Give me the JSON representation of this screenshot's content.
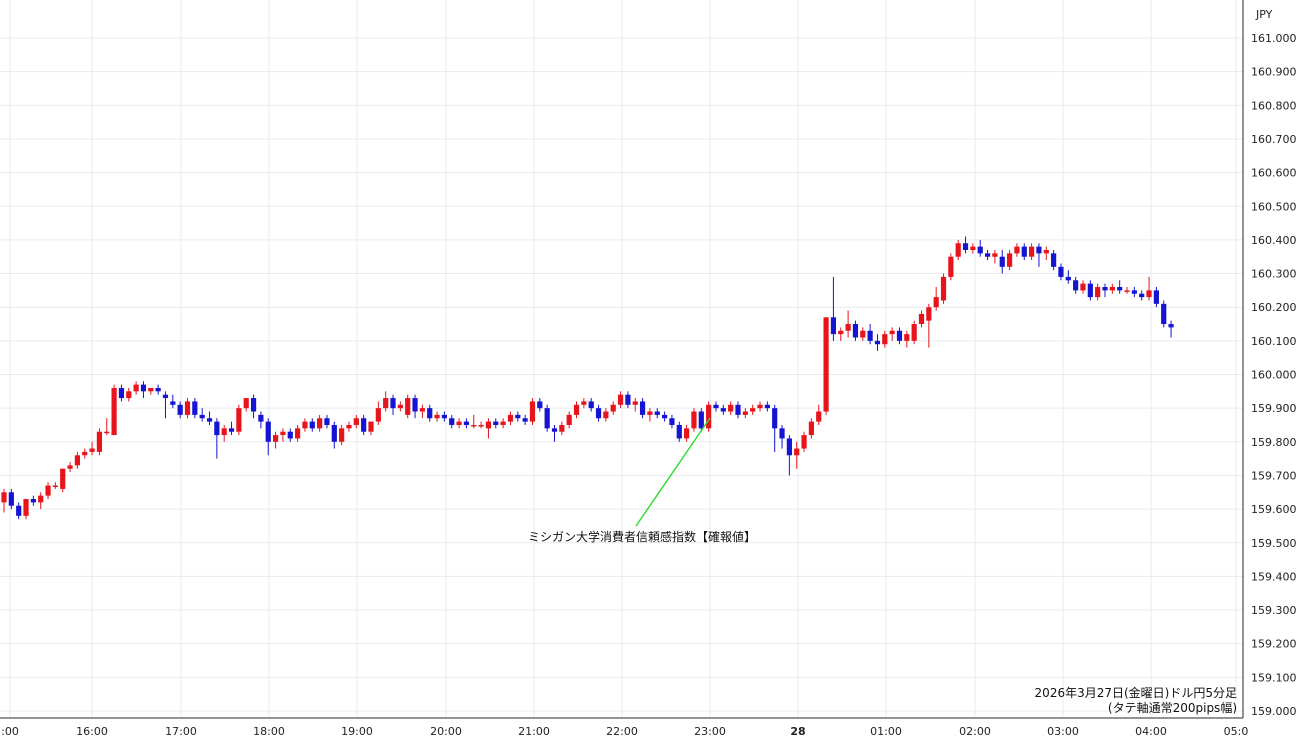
{
  "chart_data": {
    "type": "candlestick",
    "currency_label": "JPY",
    "y_ticks": [
      "161.000",
      "160.900",
      "160.800",
      "160.700",
      "160.600",
      "160.500",
      "160.400",
      "160.300",
      "160.200",
      "160.100",
      "160.000",
      "159.900",
      "159.800",
      "159.700",
      "159.600",
      "159.500",
      "159.400",
      "159.300",
      "159.200",
      "159.100",
      "159.000"
    ],
    "ylim": [
      159.0,
      161.0
    ],
    "x_ticks": [
      {
        "label": ":00",
        "bold": false
      },
      {
        "label": "16:00",
        "bold": false
      },
      {
        "label": "17:00",
        "bold": false
      },
      {
        "label": "18:00",
        "bold": false
      },
      {
        "label": "19:00",
        "bold": false
      },
      {
        "label": "20:00",
        "bold": false
      },
      {
        "label": "21:00",
        "bold": false
      },
      {
        "label": "22:00",
        "bold": false
      },
      {
        "label": "23:00",
        "bold": false
      },
      {
        "label": "28",
        "bold": true
      },
      {
        "label": "01:00",
        "bold": false
      },
      {
        "label": "02:00",
        "bold": false
      },
      {
        "label": "03:00",
        "bold": false
      },
      {
        "label": "04:00",
        "bold": false
      },
      {
        "label": "05:0",
        "bold": false
      }
    ],
    "up_color": "#e8141c",
    "down_color": "#1414d2",
    "annotation": {
      "text": "ミシガン大学消費者信頼感指数【確報値】",
      "line_color": "#33dd33"
    },
    "caption": [
      "2026年3月27日(金曜日)ドル円5分足",
      "(タテ軸通常200pips幅)"
    ],
    "candles": [
      {
        "o": 159.62,
        "h": 159.66,
        "l": 159.59,
        "c": 159.65
      },
      {
        "o": 159.65,
        "h": 159.66,
        "l": 159.6,
        "c": 159.61
      },
      {
        "o": 159.61,
        "h": 159.62,
        "l": 159.57,
        "c": 159.58
      },
      {
        "o": 159.58,
        "h": 159.63,
        "l": 159.57,
        "c": 159.63
      },
      {
        "o": 159.63,
        "h": 159.64,
        "l": 159.61,
        "c": 159.62
      },
      {
        "o": 159.62,
        "h": 159.65,
        "l": 159.6,
        "c": 159.64
      },
      {
        "o": 159.64,
        "h": 159.68,
        "l": 159.63,
        "c": 159.67
      },
      {
        "o": 159.67,
        "h": 159.68,
        "l": 159.66,
        "c": 159.67
      },
      {
        "o": 159.66,
        "h": 159.72,
        "l": 159.65,
        "c": 159.72
      },
      {
        "o": 159.72,
        "h": 159.74,
        "l": 159.71,
        "c": 159.73
      },
      {
        "o": 159.73,
        "h": 159.77,
        "l": 159.72,
        "c": 159.76
      },
      {
        "o": 159.76,
        "h": 159.78,
        "l": 159.75,
        "c": 159.77
      },
      {
        "o": 159.77,
        "h": 159.8,
        "l": 159.76,
        "c": 159.78
      },
      {
        "o": 159.77,
        "h": 159.84,
        "l": 159.76,
        "c": 159.83
      },
      {
        "o": 159.83,
        "h": 159.87,
        "l": 159.82,
        "c": 159.83
      },
      {
        "o": 159.82,
        "h": 159.97,
        "l": 159.82,
        "c": 159.96
      },
      {
        "o": 159.96,
        "h": 159.97,
        "l": 159.92,
        "c": 159.93
      },
      {
        "o": 159.93,
        "h": 159.96,
        "l": 159.92,
        "c": 159.95
      },
      {
        "o": 159.95,
        "h": 159.98,
        "l": 159.94,
        "c": 159.97
      },
      {
        "o": 159.97,
        "h": 159.98,
        "l": 159.93,
        "c": 159.95
      },
      {
        "o": 159.95,
        "h": 159.96,
        "l": 159.94,
        "c": 159.96
      },
      {
        "o": 159.96,
        "h": 159.97,
        "l": 159.94,
        "c": 159.95
      },
      {
        "o": 159.94,
        "h": 159.95,
        "l": 159.87,
        "c": 159.93
      },
      {
        "o": 159.92,
        "h": 159.94,
        "l": 159.9,
        "c": 159.91
      },
      {
        "o": 159.91,
        "h": 159.92,
        "l": 159.87,
        "c": 159.88
      },
      {
        "o": 159.88,
        "h": 159.93,
        "l": 159.87,
        "c": 159.92
      },
      {
        "o": 159.92,
        "h": 159.93,
        "l": 159.87,
        "c": 159.88
      },
      {
        "o": 159.88,
        "h": 159.9,
        "l": 159.86,
        "c": 159.87
      },
      {
        "o": 159.87,
        "h": 159.89,
        "l": 159.85,
        "c": 159.86
      },
      {
        "o": 159.86,
        "h": 159.87,
        "l": 159.75,
        "c": 159.82
      },
      {
        "o": 159.82,
        "h": 159.85,
        "l": 159.8,
        "c": 159.84
      },
      {
        "o": 159.84,
        "h": 159.86,
        "l": 159.82,
        "c": 159.83
      },
      {
        "o": 159.83,
        "h": 159.91,
        "l": 159.82,
        "c": 159.9
      },
      {
        "o": 159.9,
        "h": 159.93,
        "l": 159.89,
        "c": 159.93
      },
      {
        "o": 159.93,
        "h": 159.94,
        "l": 159.87,
        "c": 159.89
      },
      {
        "o": 159.88,
        "h": 159.89,
        "l": 159.84,
        "c": 159.86
      },
      {
        "o": 159.86,
        "h": 159.87,
        "l": 159.76,
        "c": 159.8
      },
      {
        "o": 159.8,
        "h": 159.83,
        "l": 159.78,
        "c": 159.82
      },
      {
        "o": 159.82,
        "h": 159.84,
        "l": 159.8,
        "c": 159.83
      },
      {
        "o": 159.83,
        "h": 159.84,
        "l": 159.8,
        "c": 159.81
      },
      {
        "o": 159.81,
        "h": 159.85,
        "l": 159.8,
        "c": 159.84
      },
      {
        "o": 159.84,
        "h": 159.87,
        "l": 159.83,
        "c": 159.86
      },
      {
        "o": 159.86,
        "h": 159.87,
        "l": 159.83,
        "c": 159.84
      },
      {
        "o": 159.84,
        "h": 159.88,
        "l": 159.83,
        "c": 159.87
      },
      {
        "o": 159.87,
        "h": 159.88,
        "l": 159.84,
        "c": 159.85
      },
      {
        "o": 159.85,
        "h": 159.86,
        "l": 159.78,
        "c": 159.8
      },
      {
        "o": 159.8,
        "h": 159.85,
        "l": 159.79,
        "c": 159.84
      },
      {
        "o": 159.84,
        "h": 159.86,
        "l": 159.83,
        "c": 159.85
      },
      {
        "o": 159.85,
        "h": 159.88,
        "l": 159.84,
        "c": 159.87
      },
      {
        "o": 159.87,
        "h": 159.88,
        "l": 159.82,
        "c": 159.83
      },
      {
        "o": 159.83,
        "h": 159.86,
        "l": 159.82,
        "c": 159.86
      },
      {
        "o": 159.86,
        "h": 159.92,
        "l": 159.85,
        "c": 159.9
      },
      {
        "o": 159.9,
        "h": 159.95,
        "l": 159.89,
        "c": 159.93
      },
      {
        "o": 159.93,
        "h": 159.94,
        "l": 159.88,
        "c": 159.9
      },
      {
        "o": 159.9,
        "h": 159.92,
        "l": 159.89,
        "c": 159.91
      },
      {
        "o": 159.88,
        "h": 159.94,
        "l": 159.87,
        "c": 159.93
      },
      {
        "o": 159.93,
        "h": 159.94,
        "l": 159.87,
        "c": 159.89
      },
      {
        "o": 159.89,
        "h": 159.91,
        "l": 159.87,
        "c": 159.9
      },
      {
        "o": 159.9,
        "h": 159.91,
        "l": 159.86,
        "c": 159.87
      },
      {
        "o": 159.87,
        "h": 159.89,
        "l": 159.86,
        "c": 159.88
      },
      {
        "o": 159.88,
        "h": 159.89,
        "l": 159.86,
        "c": 159.87
      },
      {
        "o": 159.87,
        "h": 159.88,
        "l": 159.84,
        "c": 159.85
      },
      {
        "o": 159.85,
        "h": 159.87,
        "l": 159.84,
        "c": 159.86
      },
      {
        "o": 159.86,
        "h": 159.87,
        "l": 159.84,
        "c": 159.85
      },
      {
        "o": 159.85,
        "h": 159.88,
        "l": 159.84,
        "c": 159.85
      },
      {
        "o": 159.85,
        "h": 159.86,
        "l": 159.84,
        "c": 159.85
      },
      {
        "o": 159.84,
        "h": 159.87,
        "l": 159.81,
        "c": 159.86
      },
      {
        "o": 159.86,
        "h": 159.87,
        "l": 159.84,
        "c": 159.85
      },
      {
        "o": 159.85,
        "h": 159.87,
        "l": 159.84,
        "c": 159.86
      },
      {
        "o": 159.86,
        "h": 159.89,
        "l": 159.85,
        "c": 159.88
      },
      {
        "o": 159.88,
        "h": 159.89,
        "l": 159.86,
        "c": 159.87
      },
      {
        "o": 159.87,
        "h": 159.88,
        "l": 159.85,
        "c": 159.86
      },
      {
        "o": 159.86,
        "h": 159.93,
        "l": 159.85,
        "c": 159.92
      },
      {
        "o": 159.92,
        "h": 159.93,
        "l": 159.89,
        "c": 159.9
      },
      {
        "o": 159.9,
        "h": 159.91,
        "l": 159.83,
        "c": 159.84
      },
      {
        "o": 159.84,
        "h": 159.85,
        "l": 159.8,
        "c": 159.83
      },
      {
        "o": 159.83,
        "h": 159.86,
        "l": 159.82,
        "c": 159.85
      },
      {
        "o": 159.85,
        "h": 159.89,
        "l": 159.84,
        "c": 159.88
      },
      {
        "o": 159.88,
        "h": 159.92,
        "l": 159.87,
        "c": 159.91
      },
      {
        "o": 159.91,
        "h": 159.93,
        "l": 159.9,
        "c": 159.92
      },
      {
        "o": 159.92,
        "h": 159.93,
        "l": 159.89,
        "c": 159.9
      },
      {
        "o": 159.9,
        "h": 159.91,
        "l": 159.86,
        "c": 159.87
      },
      {
        "o": 159.87,
        "h": 159.9,
        "l": 159.86,
        "c": 159.89
      },
      {
        "o": 159.89,
        "h": 159.92,
        "l": 159.88,
        "c": 159.91
      },
      {
        "o": 159.91,
        "h": 159.95,
        "l": 159.9,
        "c": 159.94
      },
      {
        "o": 159.94,
        "h": 159.95,
        "l": 159.9,
        "c": 159.91
      },
      {
        "o": 159.91,
        "h": 159.93,
        "l": 159.89,
        "c": 159.92
      },
      {
        "o": 159.92,
        "h": 159.93,
        "l": 159.87,
        "c": 159.88
      },
      {
        "o": 159.88,
        "h": 159.9,
        "l": 159.86,
        "c": 159.89
      },
      {
        "o": 159.89,
        "h": 159.9,
        "l": 159.87,
        "c": 159.88
      },
      {
        "o": 159.88,
        "h": 159.89,
        "l": 159.86,
        "c": 159.87
      },
      {
        "o": 159.87,
        "h": 159.88,
        "l": 159.84,
        "c": 159.85
      },
      {
        "o": 159.85,
        "h": 159.86,
        "l": 159.8,
        "c": 159.81
      },
      {
        "o": 159.81,
        "h": 159.85,
        "l": 159.8,
        "c": 159.84
      },
      {
        "o": 159.84,
        "h": 159.9,
        "l": 159.83,
        "c": 159.89
      },
      {
        "o": 159.89,
        "h": 159.9,
        "l": 159.83,
        "c": 159.84
      },
      {
        "o": 159.84,
        "h": 159.92,
        "l": 159.83,
        "c": 159.91
      },
      {
        "o": 159.91,
        "h": 159.92,
        "l": 159.89,
        "c": 159.9
      },
      {
        "o": 159.9,
        "h": 159.91,
        "l": 159.88,
        "c": 159.89
      },
      {
        "o": 159.89,
        "h": 159.92,
        "l": 159.88,
        "c": 159.91
      },
      {
        "o": 159.91,
        "h": 159.92,
        "l": 159.87,
        "c": 159.88
      },
      {
        "o": 159.88,
        "h": 159.9,
        "l": 159.87,
        "c": 159.89
      },
      {
        "o": 159.89,
        "h": 159.91,
        "l": 159.88,
        "c": 159.9
      },
      {
        "o": 159.9,
        "h": 159.92,
        "l": 159.89,
        "c": 159.91
      },
      {
        "o": 159.91,
        "h": 159.92,
        "l": 159.89,
        "c": 159.9
      },
      {
        "o": 159.9,
        "h": 159.91,
        "l": 159.77,
        "c": 159.84
      },
      {
        "o": 159.84,
        "h": 159.85,
        "l": 159.78,
        "c": 159.81
      },
      {
        "o": 159.81,
        "h": 159.82,
        "l": 159.7,
        "c": 159.76
      },
      {
        "o": 159.76,
        "h": 159.8,
        "l": 159.72,
        "c": 159.78
      },
      {
        "o": 159.78,
        "h": 159.83,
        "l": 159.77,
        "c": 159.82
      },
      {
        "o": 159.82,
        "h": 159.87,
        "l": 159.81,
        "c": 159.86
      },
      {
        "o": 159.86,
        "h": 159.91,
        "l": 159.85,
        "c": 159.89
      },
      {
        "o": 159.89,
        "h": 160.17,
        "l": 159.88,
        "c": 160.17
      },
      {
        "o": 160.17,
        "h": 160.29,
        "l": 160.1,
        "c": 160.12
      },
      {
        "o": 160.12,
        "h": 160.14,
        "l": 160.1,
        "c": 160.13
      },
      {
        "o": 160.13,
        "h": 160.19,
        "l": 160.11,
        "c": 160.15
      },
      {
        "o": 160.15,
        "h": 160.16,
        "l": 160.1,
        "c": 160.11
      },
      {
        "o": 160.11,
        "h": 160.14,
        "l": 160.1,
        "c": 160.13
      },
      {
        "o": 160.13,
        "h": 160.15,
        "l": 160.09,
        "c": 160.1
      },
      {
        "o": 160.1,
        "h": 160.12,
        "l": 160.07,
        "c": 160.09
      },
      {
        "o": 160.09,
        "h": 160.13,
        "l": 160.08,
        "c": 160.12
      },
      {
        "o": 160.12,
        "h": 160.14,
        "l": 160.1,
        "c": 160.13
      },
      {
        "o": 160.13,
        "h": 160.14,
        "l": 160.09,
        "c": 160.1
      },
      {
        "o": 160.1,
        "h": 160.13,
        "l": 160.08,
        "c": 160.12
      },
      {
        "o": 160.1,
        "h": 160.16,
        "l": 160.09,
        "c": 160.15
      },
      {
        "o": 160.15,
        "h": 160.19,
        "l": 160.14,
        "c": 160.18
      },
      {
        "o": 160.16,
        "h": 160.21,
        "l": 160.08,
        "c": 160.2
      },
      {
        "o": 160.2,
        "h": 160.26,
        "l": 160.19,
        "c": 160.23
      },
      {
        "o": 160.22,
        "h": 160.3,
        "l": 160.21,
        "c": 160.29
      },
      {
        "o": 160.29,
        "h": 160.36,
        "l": 160.28,
        "c": 160.35
      },
      {
        "o": 160.35,
        "h": 160.4,
        "l": 160.34,
        "c": 160.39
      },
      {
        "o": 160.39,
        "h": 160.41,
        "l": 160.36,
        "c": 160.37
      },
      {
        "o": 160.37,
        "h": 160.39,
        "l": 160.36,
        "c": 160.38
      },
      {
        "o": 160.38,
        "h": 160.4,
        "l": 160.35,
        "c": 160.36
      },
      {
        "o": 160.36,
        "h": 160.37,
        "l": 160.34,
        "c": 160.35
      },
      {
        "o": 160.35,
        "h": 160.37,
        "l": 160.33,
        "c": 160.36
      },
      {
        "o": 160.35,
        "h": 160.37,
        "l": 160.3,
        "c": 160.32
      },
      {
        "o": 160.32,
        "h": 160.37,
        "l": 160.31,
        "c": 160.36
      },
      {
        "o": 160.36,
        "h": 160.39,
        "l": 160.35,
        "c": 160.38
      },
      {
        "o": 160.38,
        "h": 160.39,
        "l": 160.34,
        "c": 160.35
      },
      {
        "o": 160.35,
        "h": 160.39,
        "l": 160.34,
        "c": 160.38
      },
      {
        "o": 160.38,
        "h": 160.39,
        "l": 160.32,
        "c": 160.36
      },
      {
        "o": 160.36,
        "h": 160.38,
        "l": 160.34,
        "c": 160.37
      },
      {
        "o": 160.36,
        "h": 160.37,
        "l": 160.31,
        "c": 160.32
      },
      {
        "o": 160.32,
        "h": 160.33,
        "l": 160.28,
        "c": 160.29
      },
      {
        "o": 160.29,
        "h": 160.31,
        "l": 160.27,
        "c": 160.28
      },
      {
        "o": 160.28,
        "h": 160.29,
        "l": 160.24,
        "c": 160.25
      },
      {
        "o": 160.25,
        "h": 160.28,
        "l": 160.24,
        "c": 160.27
      },
      {
        "o": 160.27,
        "h": 160.28,
        "l": 160.22,
        "c": 160.23
      },
      {
        "o": 160.23,
        "h": 160.27,
        "l": 160.22,
        "c": 160.26
      },
      {
        "o": 160.26,
        "h": 160.27,
        "l": 160.23,
        "c": 160.25
      },
      {
        "o": 160.25,
        "h": 160.27,
        "l": 160.24,
        "c": 160.26
      },
      {
        "o": 160.26,
        "h": 160.28,
        "l": 160.24,
        "c": 160.25
      },
      {
        "o": 160.25,
        "h": 160.26,
        "l": 160.24,
        "c": 160.25
      },
      {
        "o": 160.25,
        "h": 160.26,
        "l": 160.23,
        "c": 160.24
      },
      {
        "o": 160.24,
        "h": 160.25,
        "l": 160.22,
        "c": 160.23
      },
      {
        "o": 160.23,
        "h": 160.29,
        "l": 160.22,
        "c": 160.25
      },
      {
        "o": 160.25,
        "h": 160.26,
        "l": 160.2,
        "c": 160.21
      },
      {
        "o": 160.21,
        "h": 160.22,
        "l": 160.14,
        "c": 160.15
      },
      {
        "o": 160.15,
        "h": 160.16,
        "l": 160.11,
        "c": 160.14
      }
    ]
  }
}
